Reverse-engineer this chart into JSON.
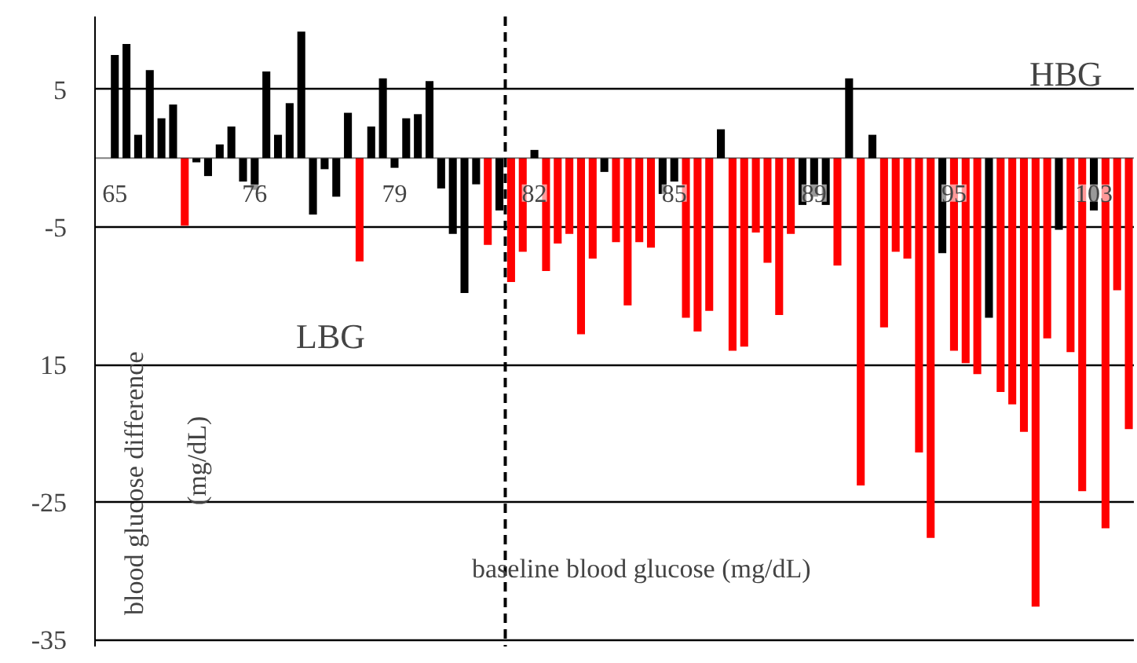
{
  "chart_data": {
    "type": "bar",
    "xlabel": "baseline blood glucose (mg/dL)",
    "ylabel": "blood glucose difference (mg/dL)",
    "annotations": [
      "HBG",
      "LBG"
    ],
    "categories": [
      "65",
      null,
      null,
      null,
      null,
      null,
      null,
      null,
      null,
      null,
      null,
      null,
      "76",
      null,
      null,
      null,
      null,
      null,
      null,
      null,
      null,
      null,
      null,
      null,
      "79",
      null,
      null,
      null,
      null,
      null,
      null,
      null,
      null,
      null,
      null,
      null,
      "82",
      null,
      null,
      null,
      null,
      null,
      null,
      null,
      null,
      null,
      null,
      null,
      "85",
      null,
      null,
      null,
      null,
      null,
      null,
      null,
      null,
      null,
      null,
      null,
      "89",
      null,
      null,
      null,
      null,
      null,
      null,
      null,
      null,
      null,
      null,
      null,
      "95",
      null,
      null,
      null,
      null,
      null,
      null,
      null,
      null,
      null,
      null,
      null,
      "103",
      null,
      null,
      null
    ],
    "values": [
      7.5,
      8.3,
      1.7,
      6.4,
      2.9,
      3.9,
      -4.9,
      -0.3,
      -1.3,
      1.0,
      2.3,
      -1.7,
      -2.3,
      6.3,
      1.7,
      4.0,
      9.2,
      -4.1,
      -0.8,
      -2.8,
      3.3,
      -7.5,
      2.3,
      5.8,
      -0.7,
      2.9,
      3.2,
      5.6,
      -2.2,
      -5.5,
      -9.8,
      -1.9,
      -6.3,
      -3.8,
      -9.0,
      -6.8,
      0.6,
      -8.2,
      -6.2,
      -5.5,
      -12.8,
      -7.3,
      -1.0,
      -6.1,
      -10.7,
      -6.1,
      -6.5,
      -2.6,
      -1.7,
      -11.6,
      -12.6,
      -11.1,
      2.1,
      -14.0,
      -13.7,
      -5.4,
      -7.6,
      -11.4,
      -5.5,
      -3.4,
      -2.8,
      -3.4,
      -7.8,
      5.8,
      -23.8,
      1.7,
      -12.3,
      -6.8,
      -7.3,
      -21.4,
      -27.6,
      -6.9,
      -14.0,
      -14.9,
      -15.7,
      -11.6,
      -17.0,
      -17.9,
      -19.9,
      -32.6,
      -13.1,
      -5.2,
      -14.1,
      -24.2,
      -3.8,
      -26.9,
      -9.6,
      -19.7
    ],
    "colors": [
      "#000000",
      "#000000",
      "#000000",
      "#000000",
      "#000000",
      "#000000",
      "#ff0000",
      "#000000",
      "#000000",
      "#000000",
      "#000000",
      "#000000",
      "#000000",
      "#000000",
      "#000000",
      "#000000",
      "#000000",
      "#000000",
      "#000000",
      "#000000",
      "#000000",
      "#ff0000",
      "#000000",
      "#000000",
      "#000000",
      "#000000",
      "#000000",
      "#000000",
      "#000000",
      "#000000",
      "#000000",
      "#000000",
      "#ff0000",
      "#000000",
      "#ff0000",
      "#ff0000",
      "#000000",
      "#ff0000",
      "#ff0000",
      "#ff0000",
      "#ff0000",
      "#ff0000",
      "#000000",
      "#ff0000",
      "#ff0000",
      "#ff0000",
      "#ff0000",
      "#000000",
      "#000000",
      "#ff0000",
      "#ff0000",
      "#ff0000",
      "#000000",
      "#ff0000",
      "#ff0000",
      "#ff0000",
      "#ff0000",
      "#ff0000",
      "#ff0000",
      "#000000",
      "#000000",
      "#000000",
      "#ff0000",
      "#000000",
      "#ff0000",
      "#000000",
      "#ff0000",
      "#ff0000",
      "#ff0000",
      "#ff0000",
      "#ff0000",
      "#000000",
      "#ff0000",
      "#ff0000",
      "#ff0000",
      "#000000",
      "#ff0000",
      "#ff0000",
      "#ff0000",
      "#ff0000",
      "#ff0000",
      "#000000",
      "#ff0000",
      "#ff0000",
      "#000000",
      "#ff0000",
      "#ff0000",
      "#ff0000"
    ],
    "ylim": [
      -35.5,
      10.3
    ],
    "yticks": [
      5,
      -5,
      {
        "value": -15,
        "label": "15"
      },
      -25,
      -35
    ],
    "grid": "y"
  }
}
